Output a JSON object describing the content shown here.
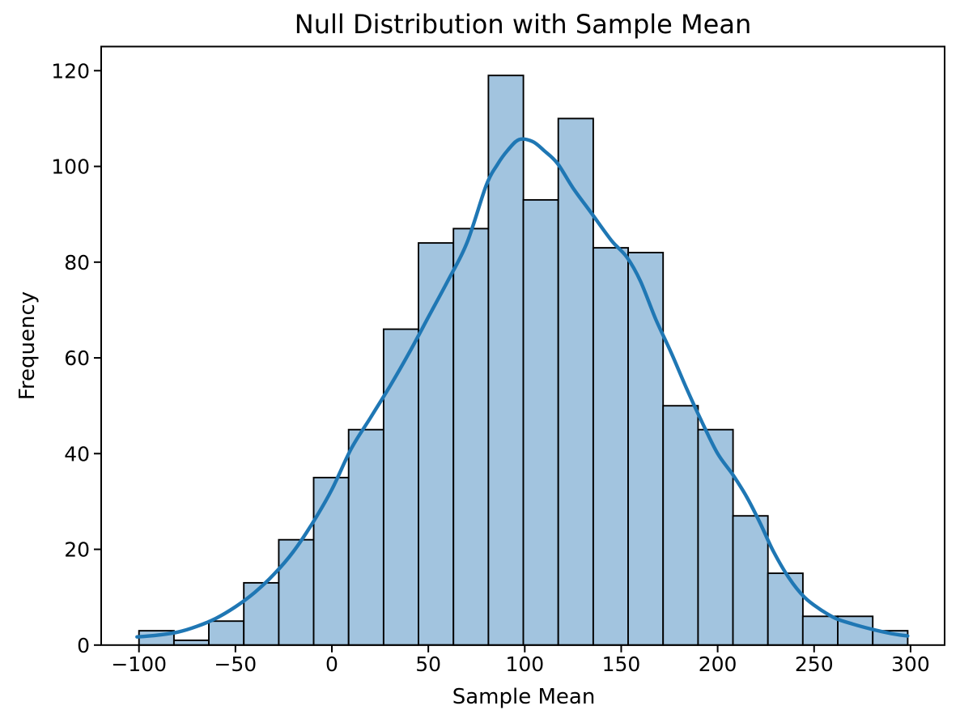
{
  "chart_data": {
    "type": "histogram",
    "title": "Null Distribution with Sample Mean",
    "xlabel": "Sample Mean",
    "ylabel": "Frequency",
    "xlim": [
      -119.6,
      317.7
    ],
    "ylim": [
      0,
      125
    ],
    "grid": false,
    "legend": "none",
    "xticks": {
      "values": [
        -100,
        -50,
        0,
        50,
        100,
        150,
        200,
        250,
        300
      ],
      "labels": [
        "−100",
        "−50",
        "0",
        "50",
        "100",
        "150",
        "200",
        "250",
        "300"
      ]
    },
    "yticks": {
      "values": [
        0,
        20,
        40,
        60,
        80,
        100,
        120
      ],
      "labels": [
        "0",
        "20",
        "40",
        "60",
        "80",
        "100",
        "120"
      ]
    },
    "histogram": {
      "bin_start": -100,
      "bin_width": 18.114,
      "bin_count": 22,
      "counts": [
        3,
        1,
        5,
        13,
        22,
        35,
        45,
        66,
        84,
        87,
        119,
        93,
        110,
        83,
        82,
        50,
        45,
        27,
        15,
        6,
        6,
        3
      ]
    },
    "kde_curve": {
      "name": "kde-overlay",
      "peak": {
        "x": 97,
        "y": 105.6
      },
      "points": [
        [
          -101,
          1.7
        ],
        [
          -90,
          2.1
        ],
        [
          -80,
          2.7
        ],
        [
          -70,
          3.9
        ],
        [
          -60,
          5.6
        ],
        [
          -50,
          8.0
        ],
        [
          -40,
          11.0
        ],
        [
          -30,
          14.8
        ],
        [
          -20,
          19.5
        ],
        [
          -10,
          25.5
        ],
        [
          0,
          32.5
        ],
        [
          10,
          41.0
        ],
        [
          20,
          47.5
        ],
        [
          30,
          54.0
        ],
        [
          40,
          61.0
        ],
        [
          50,
          68.5
        ],
        [
          60,
          76.0
        ],
        [
          70,
          84.0
        ],
        [
          80,
          96.0
        ],
        [
          86,
          100.5
        ],
        [
          91,
          103.3
        ],
        [
          97,
          105.6
        ],
        [
          104,
          105.2
        ],
        [
          110,
          103.3
        ],
        [
          117,
          100.6
        ],
        [
          125,
          95.5
        ],
        [
          135,
          90.0
        ],
        [
          145,
          84.5
        ],
        [
          153,
          81.0
        ],
        [
          160,
          76.0
        ],
        [
          168,
          68.0
        ],
        [
          176,
          61.0
        ],
        [
          184,
          53.5
        ],
        [
          192,
          46.5
        ],
        [
          200,
          40.0
        ],
        [
          208,
          35.5
        ],
        [
          215,
          31.0
        ],
        [
          222,
          25.5
        ],
        [
          229,
          19.5
        ],
        [
          237,
          14.0
        ],
        [
          245,
          10.0
        ],
        [
          253,
          7.5
        ],
        [
          261,
          5.6
        ],
        [
          270,
          4.4
        ],
        [
          280,
          3.3
        ],
        [
          290,
          2.4
        ],
        [
          298.5,
          1.9
        ]
      ]
    },
    "colors": {
      "background": "#ffffff",
      "bar_fill": "#a2c4df",
      "bar_edge": "#000000",
      "curve": "#1f77b4",
      "spine": "#000000",
      "text": "#000000"
    }
  }
}
